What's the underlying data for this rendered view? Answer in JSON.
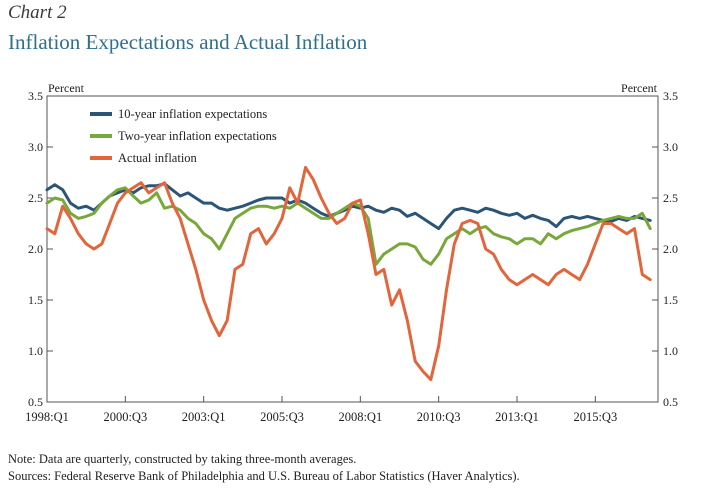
{
  "header": {
    "chart_number": "Chart 2",
    "title": "Inflation Expectations and Actual Inflation"
  },
  "notes": {
    "note": "Note: Data are quarterly, constructed by taking three-month averages.",
    "sources": "Sources: Federal Reserve Bank of Philadelphia and U.S. Bureau of Labor Statistics (Haver Analytics)."
  },
  "chart_data": {
    "type": "line",
    "title": "Inflation Expectations and Actual Inflation",
    "ylabel_left": "Percent",
    "ylabel_right": "Percent",
    "ylim": [
      0.5,
      3.5
    ],
    "yticks": [
      "0.5",
      "1.0",
      "1.5",
      "2.0",
      "2.5",
      "3.0",
      "3.5"
    ],
    "xticks": [
      "1998:Q1",
      "2000:Q3",
      "2003:Q1",
      "2005:Q3",
      "2008:Q1",
      "2010:Q3",
      "2013:Q1",
      "2015:Q3"
    ],
    "grid": false,
    "legend_position": "top-left",
    "x": [
      "1998:Q1",
      "1998:Q2",
      "1998:Q3",
      "1998:Q4",
      "1999:Q1",
      "1999:Q2",
      "1999:Q3",
      "1999:Q4",
      "2000:Q1",
      "2000:Q2",
      "2000:Q3",
      "2000:Q4",
      "2001:Q1",
      "2001:Q2",
      "2001:Q3",
      "2001:Q4",
      "2002:Q1",
      "2002:Q2",
      "2002:Q3",
      "2002:Q4",
      "2003:Q1",
      "2003:Q2",
      "2003:Q3",
      "2003:Q4",
      "2004:Q1",
      "2004:Q2",
      "2004:Q3",
      "2004:Q4",
      "2005:Q1",
      "2005:Q2",
      "2005:Q3",
      "2005:Q4",
      "2006:Q1",
      "2006:Q2",
      "2006:Q3",
      "2006:Q4",
      "2007:Q1",
      "2007:Q2",
      "2007:Q3",
      "2007:Q4",
      "2008:Q1",
      "2008:Q2",
      "2008:Q3",
      "2008:Q4",
      "2009:Q1",
      "2009:Q2",
      "2009:Q3",
      "2009:Q4",
      "2010:Q1",
      "2010:Q2",
      "2010:Q3",
      "2010:Q4",
      "2011:Q1",
      "2011:Q2",
      "2011:Q3",
      "2011:Q4",
      "2012:Q1",
      "2012:Q2",
      "2012:Q3",
      "2012:Q4",
      "2013:Q1",
      "2013:Q2",
      "2013:Q3",
      "2013:Q4",
      "2014:Q1",
      "2014:Q2",
      "2014:Q3",
      "2014:Q4",
      "2015:Q1",
      "2015:Q2",
      "2015:Q3",
      "2015:Q4",
      "2016:Q1",
      "2016:Q2",
      "2016:Q3",
      "2016:Q4",
      "2017:Q1",
      "2017:Q2"
    ],
    "series": [
      {
        "name": "10-year inflation expectations",
        "color": "#2b5576",
        "values": [
          2.58,
          2.63,
          2.58,
          2.45,
          2.4,
          2.42,
          2.38,
          2.45,
          2.52,
          2.55,
          2.58,
          2.55,
          2.6,
          2.62,
          2.62,
          2.64,
          2.58,
          2.52,
          2.55,
          2.5,
          2.45,
          2.45,
          2.4,
          2.38,
          2.4,
          2.42,
          2.45,
          2.48,
          2.5,
          2.5,
          2.5,
          2.45,
          2.48,
          2.45,
          2.4,
          2.35,
          2.32,
          2.35,
          2.38,
          2.42,
          2.4,
          2.42,
          2.38,
          2.36,
          2.4,
          2.38,
          2.32,
          2.35,
          2.3,
          2.25,
          2.2,
          2.3,
          2.38,
          2.4,
          2.38,
          2.36,
          2.4,
          2.38,
          2.35,
          2.33,
          2.35,
          2.3,
          2.33,
          2.3,
          2.28,
          2.22,
          2.3,
          2.32,
          2.3,
          2.32,
          2.3,
          2.28,
          2.27,
          2.3,
          2.28,
          2.32,
          2.3,
          2.28
        ]
      },
      {
        "name": "Two-year inflation expectations",
        "color": "#78a73a",
        "values": [
          2.45,
          2.5,
          2.48,
          2.35,
          2.3,
          2.32,
          2.35,
          2.45,
          2.52,
          2.58,
          2.6,
          2.52,
          2.45,
          2.48,
          2.55,
          2.4,
          2.42,
          2.38,
          2.3,
          2.25,
          2.15,
          2.1,
          2.0,
          2.15,
          2.3,
          2.35,
          2.4,
          2.42,
          2.42,
          2.4,
          2.42,
          2.4,
          2.45,
          2.4,
          2.35,
          2.3,
          2.3,
          2.35,
          2.4,
          2.45,
          2.42,
          2.3,
          1.85,
          1.95,
          2.0,
          2.05,
          2.05,
          2.02,
          1.9,
          1.85,
          1.95,
          2.1,
          2.15,
          2.2,
          2.15,
          2.2,
          2.22,
          2.15,
          2.12,
          2.1,
          2.05,
          2.1,
          2.1,
          2.05,
          2.15,
          2.1,
          2.15,
          2.18,
          2.2,
          2.22,
          2.25,
          2.28,
          2.3,
          2.32,
          2.3,
          2.3,
          2.35,
          2.2
        ]
      },
      {
        "name": "Actual inflation",
        "color": "#e2653b",
        "values": [
          2.2,
          2.15,
          2.42,
          2.3,
          2.15,
          2.05,
          2.0,
          2.05,
          2.25,
          2.45,
          2.55,
          2.6,
          2.65,
          2.55,
          2.6,
          2.65,
          2.45,
          2.3,
          2.05,
          1.8,
          1.5,
          1.3,
          1.15,
          1.3,
          1.8,
          1.85,
          2.15,
          2.2,
          2.05,
          2.15,
          2.3,
          2.6,
          2.45,
          2.8,
          2.68,
          2.5,
          2.35,
          2.25,
          2.3,
          2.45,
          2.48,
          2.15,
          1.75,
          1.8,
          1.45,
          1.6,
          1.3,
          0.9,
          0.8,
          0.72,
          1.05,
          1.6,
          2.05,
          2.25,
          2.28,
          2.25,
          2.0,
          1.95,
          1.8,
          1.7,
          1.65,
          1.7,
          1.75,
          1.7,
          1.65,
          1.75,
          1.8,
          1.75,
          1.7,
          1.85,
          2.05,
          2.25,
          2.25,
          2.2,
          2.15,
          2.2,
          1.75,
          1.7
        ]
      }
    ]
  }
}
